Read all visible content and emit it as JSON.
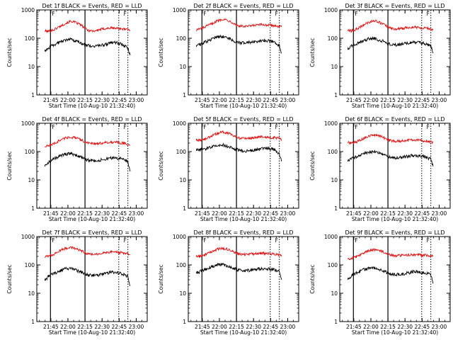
{
  "colors": {
    "events": "#000000",
    "lld": "#e01010",
    "marker": "#000000",
    "background": "#ffffff"
  },
  "shared": {
    "xlabel": "Start Time (10-Aug-10 21:32:40)",
    "ylabel": "Counts/sec",
    "x_tick_labels": [
      "21:45",
      "22:00",
      "22:15",
      "22:30",
      "22:45",
      "23:00"
    ],
    "x_tick_minutes_after_start": [
      12.33,
      27.33,
      42.33,
      57.33,
      72.33,
      87.33
    ],
    "xlim_minutes_after_start": [
      0,
      97
    ],
    "y_scale": "log",
    "ylim": [
      1,
      1000
    ],
    "y_tick_labels": [
      "1",
      "10",
      "100",
      "1000"
    ],
    "y_tick_values": [
      1,
      10,
      100,
      1000
    ],
    "marker_labels": [
      "F",
      "F"
    ]
  },
  "chart_data": [
    {
      "type": "line",
      "title": "Det 1f BLACK = Events, RED = LLD",
      "series": [
        {
          "name": "Events",
          "color": "#000000"
        },
        {
          "name": "LLD",
          "color": "#e01010"
        }
      ],
      "x_minutes": [
        7,
        10,
        15,
        20,
        25,
        30,
        33,
        38,
        42,
        45,
        50,
        55,
        60,
        65,
        70,
        75,
        80,
        82
      ],
      "events": [
        35,
        45,
        58,
        72,
        85,
        90,
        80,
        70,
        60,
        55,
        52,
        55,
        60,
        68,
        70,
        60,
        45,
        25
      ],
      "lld": [
        180,
        175,
        200,
        260,
        330,
        400,
        370,
        310,
        230,
        190,
        180,
        200,
        220,
        230,
        225,
        215,
        200,
        190
      ],
      "solid_markers_minutes": [
        12,
        42.33
      ],
      "dotted_markers_minutes": [
        72,
        80
      ]
    },
    {
      "type": "line",
      "title": "Det 2f BLACK = Events, RED = LLD",
      "series": [
        {
          "name": "Events",
          "color": "#000000"
        },
        {
          "name": "LLD",
          "color": "#e01010"
        }
      ],
      "x_minutes": [
        7,
        10,
        15,
        20,
        25,
        30,
        33,
        38,
        42,
        45,
        50,
        55,
        60,
        65,
        70,
        75,
        80,
        82
      ],
      "events": [
        50,
        60,
        75,
        90,
        110,
        115,
        105,
        90,
        75,
        70,
        68,
        72,
        78,
        85,
        82,
        75,
        55,
        30
      ],
      "lld": [
        200,
        210,
        250,
        320,
        400,
        480,
        450,
        380,
        300,
        270,
        260,
        270,
        290,
        300,
        290,
        280,
        260,
        250
      ],
      "solid_markers_minutes": [
        12,
        42.33
      ],
      "dotted_markers_minutes": [
        72,
        80
      ]
    },
    {
      "type": "line",
      "title": "Det 3f BLACK = Events, RED = LLD",
      "series": [
        {
          "name": "Events",
          "color": "#000000"
        },
        {
          "name": "LLD",
          "color": "#e01010"
        }
      ],
      "x_minutes": [
        7,
        10,
        15,
        20,
        25,
        30,
        33,
        38,
        42,
        45,
        50,
        55,
        60,
        65,
        70,
        75,
        80,
        82
      ],
      "events": [
        40,
        55,
        65,
        80,
        95,
        100,
        90,
        78,
        65,
        60,
        58,
        62,
        68,
        72,
        70,
        65,
        55,
        30
      ],
      "lld": [
        190,
        180,
        210,
        280,
        360,
        420,
        390,
        320,
        250,
        220,
        210,
        220,
        240,
        250,
        240,
        230,
        210,
        200
      ],
      "solid_markers_minutes": [
        12,
        42.33
      ],
      "dotted_markers_minutes": [
        72,
        80
      ]
    },
    {
      "type": "line",
      "title": "Det 4f BLACK = Events, RED = LLD",
      "series": [
        {
          "name": "Events",
          "color": "#000000"
        },
        {
          "name": "LLD",
          "color": "#e01010"
        }
      ],
      "x_minutes": [
        7,
        10,
        15,
        20,
        25,
        30,
        33,
        38,
        42,
        45,
        50,
        55,
        60,
        65,
        70,
        75,
        80,
        82
      ],
      "events": [
        30,
        40,
        55,
        70,
        80,
        85,
        75,
        65,
        55,
        50,
        48,
        50,
        55,
        60,
        58,
        55,
        45,
        20
      ],
      "lld": [
        150,
        160,
        190,
        250,
        300,
        330,
        310,
        270,
        220,
        200,
        190,
        195,
        210,
        215,
        210,
        200,
        180,
        170
      ],
      "solid_markers_minutes": [
        12,
        42.33
      ],
      "dotted_markers_minutes": [
        72,
        80
      ]
    },
    {
      "type": "line",
      "title": "Det 5f BLACK = Events, RED = LLD",
      "series": [
        {
          "name": "Events",
          "color": "#000000"
        },
        {
          "name": "LLD",
          "color": "#e01010"
        }
      ],
      "x_minutes": [
        7,
        10,
        15,
        20,
        25,
        30,
        33,
        38,
        42,
        45,
        50,
        55,
        60,
        65,
        70,
        75,
        80,
        82
      ],
      "events": [
        110,
        115,
        125,
        145,
        165,
        175,
        160,
        140,
        120,
        110,
        105,
        110,
        115,
        125,
        130,
        120,
        80,
        45
      ],
      "lld": [
        260,
        250,
        280,
        350,
        430,
        500,
        470,
        400,
        330,
        300,
        290,
        300,
        320,
        330,
        320,
        310,
        290,
        270
      ],
      "solid_markers_minutes": [
        12,
        42.33
      ],
      "dotted_markers_minutes": [
        72,
        80
      ]
    },
    {
      "type": "line",
      "title": "Det 6f BLACK = Events, RED = LLD",
      "series": [
        {
          "name": "Events",
          "color": "#000000"
        },
        {
          "name": "LLD",
          "color": "#e01010"
        }
      ],
      "x_minutes": [
        7,
        10,
        15,
        20,
        25,
        30,
        33,
        38,
        42,
        45,
        50,
        55,
        60,
        65,
        70,
        75,
        80,
        82
      ],
      "events": [
        45,
        55,
        65,
        80,
        95,
        100,
        92,
        80,
        68,
        62,
        60,
        63,
        68,
        72,
        70,
        65,
        55,
        30
      ],
      "lld": [
        210,
        200,
        220,
        280,
        350,
        390,
        370,
        320,
        260,
        240,
        230,
        235,
        250,
        260,
        250,
        240,
        220,
        210
      ],
      "solid_markers_minutes": [
        12,
        42.33
      ],
      "dotted_markers_minutes": [
        72,
        80
      ]
    },
    {
      "type": "line",
      "title": "Det 7f BLACK = Events, RED = LLD",
      "series": [
        {
          "name": "Events",
          "color": "#000000"
        },
        {
          "name": "LLD",
          "color": "#e01010"
        }
      ],
      "x_minutes": [
        7,
        10,
        15,
        20,
        25,
        30,
        33,
        38,
        42,
        45,
        50,
        55,
        60,
        65,
        70,
        75,
        80,
        82
      ],
      "events": [
        28,
        38,
        50,
        62,
        72,
        75,
        68,
        58,
        48,
        44,
        42,
        45,
        50,
        55,
        52,
        48,
        40,
        18
      ],
      "lld": [
        190,
        200,
        240,
        320,
        380,
        420,
        390,
        330,
        270,
        250,
        240,
        250,
        270,
        290,
        280,
        270,
        250,
        230
      ],
      "solid_markers_minutes": [
        12,
        42.33
      ],
      "dotted_markers_minutes": [
        72,
        80
      ]
    },
    {
      "type": "line",
      "title": "Det 8f BLACK = Events, RED = LLD",
      "series": [
        {
          "name": "Events",
          "color": "#000000"
        },
        {
          "name": "LLD",
          "color": "#e01010"
        }
      ],
      "x_minutes": [
        7,
        10,
        15,
        20,
        25,
        30,
        33,
        38,
        42,
        45,
        50,
        55,
        60,
        65,
        70,
        75,
        80,
        82
      ],
      "events": [
        50,
        58,
        68,
        85,
        100,
        105,
        95,
        82,
        70,
        65,
        62,
        65,
        70,
        75,
        72,
        68,
        60,
        30
      ],
      "lld": [
        200,
        200,
        230,
        290,
        350,
        390,
        370,
        320,
        260,
        240,
        230,
        240,
        250,
        260,
        250,
        245,
        230,
        220
      ],
      "solid_markers_minutes": [
        12,
        42.33
      ],
      "dotted_markers_minutes": [
        72,
        80
      ]
    },
    {
      "type": "line",
      "title": "Det 9f BLACK = Events, RED = LLD",
      "series": [
        {
          "name": "Events",
          "color": "#000000"
        },
        {
          "name": "LLD",
          "color": "#e01010"
        }
      ],
      "x_minutes": [
        7,
        10,
        15,
        20,
        25,
        30,
        33,
        38,
        42,
        45,
        50,
        55,
        60,
        65,
        70,
        75,
        80,
        82
      ],
      "events": [
        30,
        40,
        52,
        65,
        75,
        80,
        72,
        62,
        52,
        48,
        46,
        48,
        52,
        58,
        56,
        52,
        45,
        22
      ],
      "lld": [
        170,
        170,
        200,
        260,
        320,
        350,
        330,
        290,
        240,
        220,
        210,
        215,
        225,
        230,
        225,
        220,
        210,
        200
      ],
      "solid_markers_minutes": [
        12,
        42.33
      ],
      "dotted_markers_minutes": [
        72,
        80
      ]
    }
  ]
}
